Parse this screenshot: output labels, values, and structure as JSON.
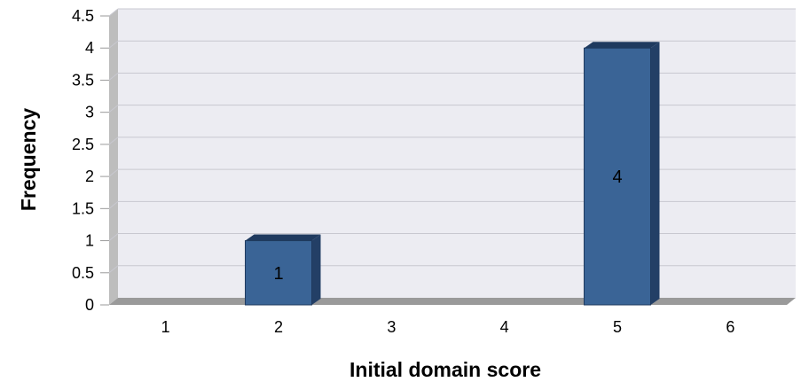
{
  "chart_data": {
    "type": "bar",
    "title": "",
    "xlabel": "Initial domain score",
    "ylabel": "Frequency",
    "categories": [
      "1",
      "2",
      "3",
      "4",
      "5",
      "6"
    ],
    "values": [
      0,
      1,
      0,
      0,
      4,
      0
    ],
    "data_labels": [
      "",
      "1",
      "",
      "",
      "4",
      ""
    ],
    "ylim": [
      0,
      4.5
    ],
    "yticks": [
      "0",
      "0.5",
      "1",
      "1.5",
      "2",
      "2.5",
      "3",
      "3.5",
      "4",
      "4.5"
    ],
    "grid": true,
    "legend": "none",
    "style": "3d",
    "colors": {
      "bar_front": "#3A6496",
      "bar_side": "#233F66",
      "bar_top": "#1F3A5F",
      "plot_background": "#ECECF2",
      "wall": "#BDBDBD",
      "floor": "#9A9A9A",
      "gridline": "#C8C8D0"
    }
  }
}
